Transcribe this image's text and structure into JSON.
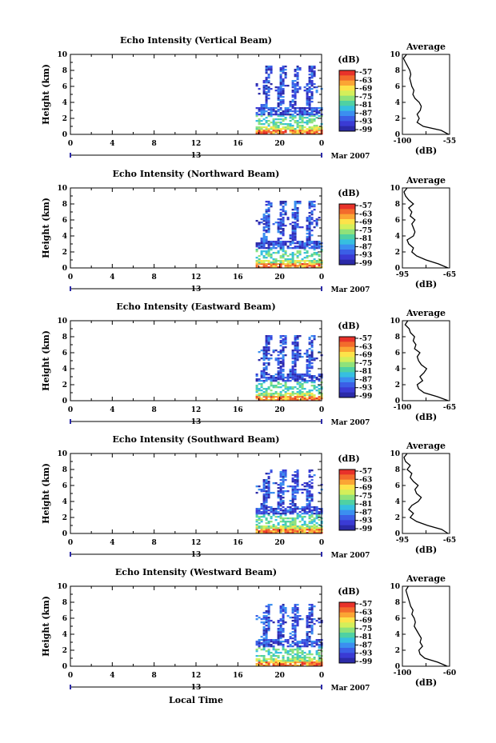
{
  "figure": {
    "xlabel": "Local Time",
    "date_label": "Mar 2007",
    "day_marker": "13"
  },
  "colorbar": {
    "unit": "(dB)",
    "ticks": [
      "-57",
      "-63",
      "-69",
      "-75",
      "-81",
      "-87",
      "-93",
      "-99"
    ],
    "colors": [
      "#e8322a",
      "#f36b2c",
      "#fba534",
      "#fde34a",
      "#d4ef5a",
      "#8fe27a",
      "#4fd1a3",
      "#36bfe0",
      "#3b8ff0",
      "#3b5fe6",
      "#3a3bd4",
      "#2b2aa8"
    ]
  },
  "chart_data": [
    {
      "type": "heatmap",
      "title": "Echo Intensity (Vertical Beam)",
      "ylabel": "Height (km)",
      "xlim": [
        0,
        24
      ],
      "ylim": [
        0,
        10
      ],
      "x_ticks": [
        "0",
        "4",
        "8",
        "12",
        "16",
        "20",
        "0"
      ],
      "y_ticks": [
        "0",
        "2",
        "4",
        "6",
        "8",
        "10"
      ],
      "data_start_hour": 17.7,
      "profile": {
        "title": "Average",
        "xlabel": "(dB)",
        "x_ticks": [
          "-100",
          "-55"
        ],
        "xlim": [
          -100,
          -55
        ],
        "heights": [
          0,
          0.5,
          1,
          1.5,
          2,
          2.5,
          3,
          3.5,
          4,
          4.5,
          5,
          5.5,
          6,
          6.5,
          7,
          7.5,
          8,
          8.5,
          9,
          9.5,
          10
        ],
        "values": [
          -56,
          -63,
          -80,
          -86,
          -84,
          -86,
          -83,
          -82,
          -84,
          -88,
          -90,
          -89,
          -91,
          -92,
          -93,
          -92,
          -93,
          -95,
          -97,
          -99,
          -96
        ]
      }
    },
    {
      "type": "heatmap",
      "title": "Echo Intensity (Northward Beam)",
      "ylabel": "Height (km)",
      "xlim": [
        0,
        24
      ],
      "ylim": [
        0,
        10
      ],
      "x_ticks": [
        "0",
        "4",
        "8",
        "12",
        "16",
        "20",
        "0"
      ],
      "y_ticks": [
        "0",
        "2",
        "4",
        "6",
        "8",
        "10"
      ],
      "data_start_hour": 17.7,
      "profile": {
        "title": "Average",
        "xlabel": "(dB)",
        "x_ticks": [
          "-95",
          "-65"
        ],
        "xlim": [
          -95,
          -65
        ],
        "heights": [
          0,
          0.5,
          1,
          1.5,
          2,
          2.5,
          3,
          3.5,
          4,
          4.5,
          5,
          5.5,
          6,
          6.5,
          7,
          7.5,
          8,
          8.5,
          9,
          9.5,
          10
        ],
        "values": [
          -66,
          -72,
          -80,
          -86,
          -89,
          -88,
          -91,
          -92,
          -88,
          -87,
          -88,
          -89,
          -87,
          -90,
          -89,
          -91,
          -88,
          -91,
          -93,
          -94,
          -92
        ]
      }
    },
    {
      "type": "heatmap",
      "title": "Echo Intensity (Eastward Beam)",
      "ylabel": "Height (km)",
      "xlim": [
        0,
        24
      ],
      "ylim": [
        0,
        10
      ],
      "x_ticks": [
        "0",
        "4",
        "8",
        "12",
        "16",
        "20",
        "0"
      ],
      "y_ticks": [
        "0",
        "2",
        "4",
        "6",
        "8",
        "10"
      ],
      "data_start_hour": 17.7,
      "profile": {
        "title": "Average",
        "xlabel": "(dB)",
        "x_ticks": [
          "-100",
          "-65"
        ],
        "xlim": [
          -100,
          -65
        ],
        "heights": [
          0,
          0.5,
          1,
          1.5,
          2,
          2.5,
          3,
          3.5,
          4,
          4.5,
          5,
          5.5,
          6,
          6.5,
          7,
          7.5,
          8,
          8.5,
          9,
          9.5,
          10
        ],
        "values": [
          -66,
          -74,
          -84,
          -88,
          -89,
          -85,
          -87,
          -84,
          -82,
          -86,
          -88,
          -89,
          -87,
          -91,
          -90,
          -92,
          -91,
          -94,
          -95,
          -98,
          -96
        ]
      }
    },
    {
      "type": "heatmap",
      "title": "Echo Intensity (Southward Beam)",
      "ylabel": "Height (km)",
      "xlim": [
        0,
        24
      ],
      "ylim": [
        0,
        10
      ],
      "x_ticks": [
        "0",
        "4",
        "8",
        "12",
        "16",
        "20",
        "0"
      ],
      "y_ticks": [
        "0",
        "2",
        "4",
        "6",
        "8",
        "10"
      ],
      "data_start_hour": 17.7,
      "profile": {
        "title": "Average",
        "xlabel": "(dB)",
        "x_ticks": [
          "-95",
          "-65"
        ],
        "xlim": [
          -95,
          -65
        ],
        "heights": [
          0,
          0.5,
          1,
          1.5,
          2,
          2.5,
          3,
          3.5,
          4,
          4.5,
          5,
          5.5,
          6,
          6.5,
          7,
          7.5,
          8,
          8.5,
          9,
          9.5,
          10
        ],
        "values": [
          -66,
          -70,
          -79,
          -86,
          -90,
          -88,
          -91,
          -89,
          -85,
          -83,
          -86,
          -87,
          -85,
          -88,
          -90,
          -89,
          -92,
          -90,
          -93,
          -94,
          -92
        ]
      }
    },
    {
      "type": "heatmap",
      "title": "Echo Intensity (Westward Beam)",
      "ylabel": "Height (km)",
      "xlim": [
        0,
        24
      ],
      "ylim": [
        0,
        10
      ],
      "x_ticks": [
        "0",
        "4",
        "8",
        "12",
        "16",
        "20",
        "0"
      ],
      "y_ticks": [
        "0",
        "2",
        "4",
        "6",
        "8",
        "10"
      ],
      "data_start_hour": 17.7,
      "profile": {
        "title": "Average",
        "xlabel": "(dB)",
        "x_ticks": [
          "-100",
          "-60"
        ],
        "xlim": [
          -100,
          -60
        ],
        "heights": [
          0,
          0.5,
          1,
          1.5,
          2,
          2.5,
          3,
          3.5,
          4,
          4.5,
          5,
          5.5,
          6,
          6.5,
          7,
          7.5,
          8,
          8.5,
          9,
          9.5,
          10
        ],
        "values": [
          -62,
          -70,
          -81,
          -85,
          -86,
          -83,
          -85,
          -84,
          -86,
          -88,
          -90,
          -89,
          -90,
          -92,
          -91,
          -93,
          -94,
          -95,
          -96,
          -97,
          -95
        ]
      }
    }
  ]
}
